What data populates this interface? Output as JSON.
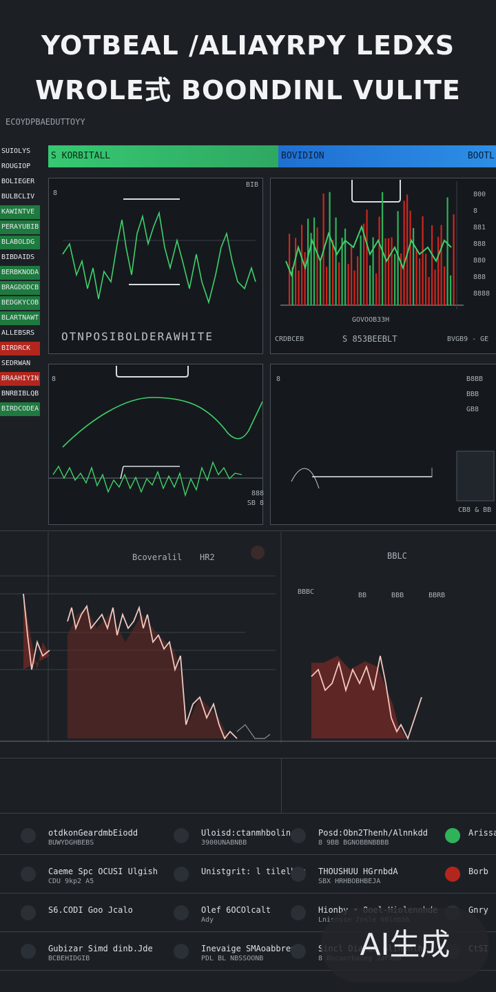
{
  "header": {
    "title_line1": "YOTBEAL /ALIAYRPY LEDXS",
    "title_line2": "WROLE式 BOONDINL VULITE",
    "subtitle": "ECOYDPBAEDUTTOYY"
  },
  "sidebar": {
    "items": [
      {
        "label": "SUIOLYS",
        "style": "plain"
      },
      {
        "label": "ROUGIOP",
        "style": "plain"
      },
      {
        "label": "BOLIEGER",
        "style": "plain"
      },
      {
        "label": "BULBCLIV",
        "style": "plain"
      },
      {
        "label": "KAWINTVE",
        "style": "green"
      },
      {
        "label": "PERAYUBIB",
        "style": "green"
      },
      {
        "label": "BLABOLDG",
        "style": "green"
      },
      {
        "label": "BIBDAIDS",
        "style": "plain"
      },
      {
        "label": "BERBKNODA",
        "style": "green"
      },
      {
        "label": "BRAGDODCB",
        "style": "green"
      },
      {
        "label": "BEDGKYCOB",
        "style": "green"
      },
      {
        "label": "BLARTNAWT",
        "style": "green"
      },
      {
        "label": "ALLEBSRS",
        "style": "plain"
      },
      {
        "label": "BIRDRCK",
        "style": "red"
      },
      {
        "label": "SEDRWAN",
        "style": "plain"
      },
      {
        "label": "BRAAHIYIN",
        "style": "red"
      },
      {
        "label": "BNRBIBLQB",
        "style": "plain"
      },
      {
        "label": "BIRDCODEA",
        "style": "green"
      }
    ]
  },
  "tabs": {
    "left": "S KORBITALL",
    "mid": "BOVIDION",
    "right": "BOOTL"
  },
  "panels": {
    "p1": {
      "corner": "8",
      "corner_right": "BIB",
      "footer": "OTNPOSIBOLDERAWHITE"
    },
    "p2": {
      "axis": [
        "800",
        "8",
        "881",
        "888",
        "880",
        "888",
        "8888"
      ],
      "label": "GOVOOB33H",
      "footer_left": "CRDBCEB",
      "footer_mid": "S 853BEEBLT",
      "footer_right": "BVGB9 - GE"
    },
    "p3": {
      "corner": "8",
      "corner_right": "888",
      "foot": "SB 8"
    },
    "p4": {
      "corner": "8",
      "axis": [
        "B8BB",
        "BBB",
        "GB8"
      ],
      "footer": "CB8 & BB"
    }
  },
  "lower_chart": {
    "left_label": "Bcoveralil",
    "left_label2": "HR2",
    "right_label": "BBLC",
    "right_sub": "BBBC",
    "tabs_right": [
      "BB",
      "BBB",
      "BBRB"
    ]
  },
  "feed": {
    "rows": [
      {
        "col1_title": "otdkonGeardmbEiodd",
        "col1_sub": "BUWYDGHBEBS",
        "col2_title": "Uloisd:ctanmhbolin",
        "col2_sub": "3900UNABNBB",
        "col3_title": "Posd:Obn2Thenh/Alnnkdd",
        "col3_sub": "8 9BB BGNOBBNBBBB",
        "col4": "Arissar"
      },
      {
        "col1_title": "Caeme Spc OCUSI Ulgish",
        "col1_sub": "CDU 9kp2 A5",
        "col2_title": "Unistgrit: l tilelbng",
        "col2_sub": "",
        "col3_title": "THOUSHUU HGrnbdA",
        "col3_sub": "SBX HRHBOBHBEJA",
        "col4": "Borb"
      },
      {
        "col1_title": "S6.CODI Goo Jcalo",
        "col1_sub": "",
        "col2_title": "Olef 6OCOlcalt",
        "col2_sub": "Ady",
        "col3_title": "Hionby • Ooel-Hiolennhde",
        "col3_sub": "Lniensse 2osle 6Blob56",
        "col4": "Gnry"
      },
      {
        "col1_title": "Gubizar Simd dinb.Jde",
        "col1_sub": "BCBEHIDGIB",
        "col2_title": "Inevaige SMAoabbreo",
        "col2_sub": "PDL BL NBSSOONB",
        "col3_title": "Sincl Dianbh Glinbnlhe",
        "col3_sub": "8 Bocaorbaneg JaFXBB",
        "col4": "CtSI"
      }
    ]
  },
  "watermark": "AI生成",
  "colors": {
    "accent_green": "#36c872",
    "accent_blue": "#1f6fd1",
    "red": "#d0251e",
    "salmon": "#e89a8a",
    "background": "#1c2025"
  }
}
